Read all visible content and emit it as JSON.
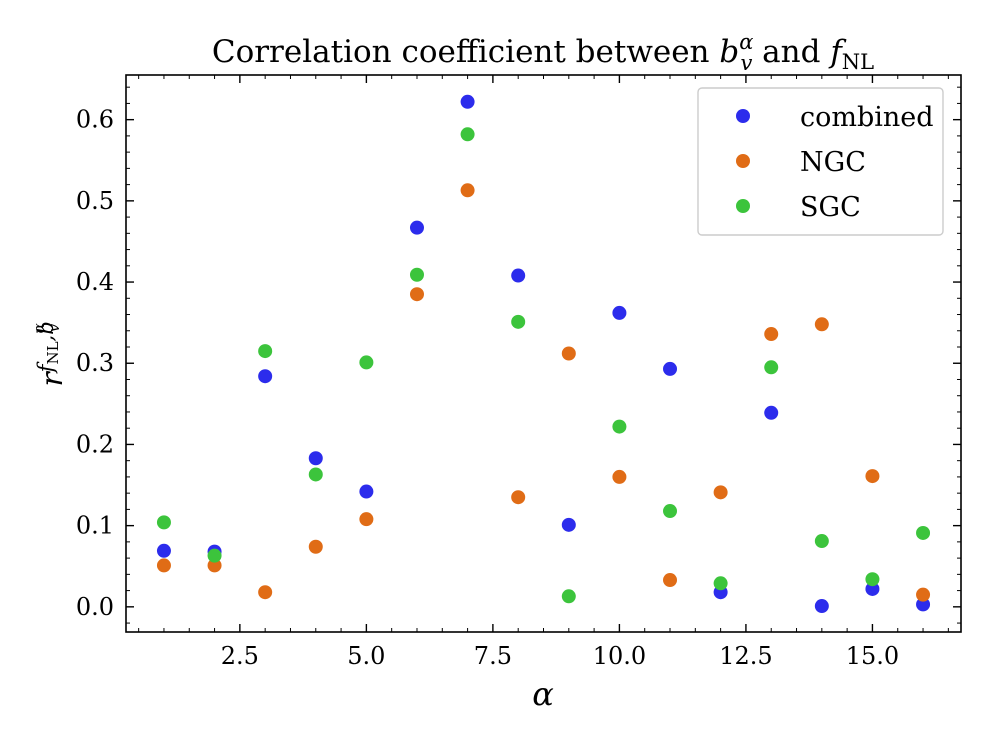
{
  "chart_data": {
    "type": "scatter",
    "title": {
      "prefix": "Correlation coefficient between ",
      "b_symbol": "b",
      "b_sub": "v",
      "b_sup": "α",
      "middle": " and ",
      "f_symbol": "f",
      "f_sub": "NL"
    },
    "xlabel": "α",
    "ylabel": {
      "symbol": "r",
      "sub_f": "f",
      "sub_nl": "NL",
      "sub_b": ",b",
      "sub_v": "v",
      "sub_alpha": "α"
    },
    "xlim": [
      0.25,
      16.75
    ],
    "ylim": [
      -0.031,
      0.655
    ],
    "x_ticks": [
      2.5,
      5.0,
      7.5,
      10.0,
      12.5,
      15.0
    ],
    "x_tick_labels": [
      "2.5",
      "5.0",
      "7.5",
      "10.0",
      "12.5",
      "15.0"
    ],
    "y_ticks": [
      0.0,
      0.1,
      0.2,
      0.3,
      0.4,
      0.5,
      0.6
    ],
    "y_tick_labels": [
      "0.0",
      "0.1",
      "0.2",
      "0.3",
      "0.4",
      "0.5",
      "0.6"
    ],
    "grid": false,
    "legend_position": "top-right",
    "series": [
      {
        "name": "combined",
        "color": "#2c2cec",
        "x": [
          1,
          2,
          3,
          4,
          5,
          6,
          7,
          8,
          9,
          10,
          11,
          12,
          13,
          14,
          15,
          16
        ],
        "values": [
          0.069,
          0.068,
          0.284,
          0.183,
          0.142,
          0.467,
          0.622,
          0.408,
          0.101,
          0.362,
          0.293,
          0.018,
          0.239,
          0.001,
          0.022,
          0.003
        ]
      },
      {
        "name": "NGC",
        "color": "#e06c16",
        "x": [
          1,
          2,
          3,
          4,
          5,
          6,
          7,
          8,
          9,
          10,
          11,
          12,
          13,
          14,
          15,
          16
        ],
        "values": [
          0.051,
          0.051,
          0.018,
          0.074,
          0.108,
          0.385,
          0.513,
          0.135,
          0.312,
          0.16,
          0.033,
          0.141,
          0.336,
          0.348,
          0.161,
          0.015
        ]
      },
      {
        "name": "SGC",
        "color": "#3cc43c",
        "x": [
          1,
          2,
          3,
          4,
          5,
          6,
          7,
          8,
          9,
          10,
          11,
          12,
          13,
          14,
          15,
          16
        ],
        "values": [
          0.104,
          0.063,
          0.315,
          0.163,
          0.301,
          0.409,
          0.582,
          0.351,
          0.013,
          0.222,
          0.118,
          0.029,
          0.295,
          0.081,
          0.034,
          0.091
        ]
      }
    ]
  }
}
